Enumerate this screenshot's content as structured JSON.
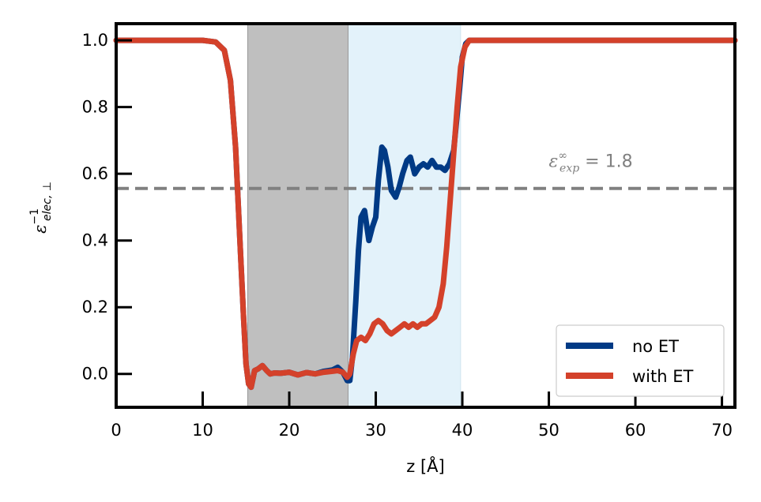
{
  "chart_data": {
    "type": "line",
    "xlabel": "z [Å]",
    "ylabel_main": "ε",
    "ylabel_sup": "−1",
    "ylabel_sub": "elec, ⊥",
    "xlim": [
      0,
      71.5
    ],
    "ylim": [
      -0.1,
      1.05
    ],
    "x_ticks": [
      0,
      10,
      20,
      30,
      40,
      50,
      60,
      70
    ],
    "x_tick_labels": [
      "0",
      "10",
      "20",
      "30",
      "40",
      "50",
      "60",
      "70"
    ],
    "y_ticks": [
      0.0,
      0.2,
      0.4,
      0.6,
      0.8,
      1.0
    ],
    "y_tick_labels": [
      "0.0",
      "0.2",
      "0.4",
      "0.6",
      "0.8",
      "1.0"
    ],
    "grid": false,
    "legend_position": "lower-right",
    "shaded_regions": [
      {
        "from": 15.2,
        "to": 26.8,
        "color": "#bfbfbf"
      },
      {
        "from": 26.8,
        "to": 39.8,
        "color": "#e3f2fa"
      }
    ],
    "reference_line": {
      "y": 0.556,
      "color": "#808080",
      "style": "dashed"
    },
    "annotation": {
      "base": "ε",
      "sup": "∞",
      "sub": "exp",
      "rest": " = 1.8",
      "x": 50,
      "y": 0.63
    },
    "series": [
      {
        "name": "no ET",
        "color": "#003a85",
        "x": [
          0,
          10,
          11.5,
          12.5,
          13.2,
          13.8,
          14.3,
          14.7,
          15.0,
          15.3,
          15.6,
          16.0,
          16.4,
          16.9,
          17.4,
          17.8,
          18.3,
          19.0,
          20.0,
          21.0,
          22.0,
          23.0,
          24.0,
          25.0,
          25.6,
          26.2,
          26.7,
          27.0,
          27.3,
          27.7,
          28.0,
          28.3,
          28.7,
          29.2,
          29.6,
          30.0,
          30.3,
          30.7,
          31.0,
          31.4,
          31.8,
          32.3,
          32.7,
          33.1,
          33.6,
          34.0,
          34.5,
          35.0,
          35.5,
          36.0,
          36.5,
          37.0,
          37.5,
          38.0,
          38.5,
          39.0,
          39.3,
          39.7,
          40.0,
          40.4,
          40.8,
          41.3,
          42.0,
          43.0,
          50.0,
          71.5
        ],
        "values": [
          1.0,
          1.0,
          0.995,
          0.97,
          0.88,
          0.68,
          0.4,
          0.18,
          0.03,
          -0.03,
          -0.04,
          0.01,
          0.015,
          0.025,
          0.01,
          0.0,
          0.003,
          0.002,
          0.005,
          -0.003,
          0.004,
          0.0,
          0.008,
          0.012,
          0.02,
          0.005,
          -0.02,
          -0.02,
          0.05,
          0.22,
          0.37,
          0.47,
          0.49,
          0.4,
          0.44,
          0.47,
          0.58,
          0.68,
          0.67,
          0.62,
          0.55,
          0.53,
          0.56,
          0.6,
          0.64,
          0.65,
          0.6,
          0.62,
          0.63,
          0.62,
          0.64,
          0.62,
          0.62,
          0.61,
          0.63,
          0.67,
          0.75,
          0.86,
          0.95,
          0.99,
          1.0,
          1.0,
          1.0,
          1.0,
          1.0,
          1.0
        ]
      },
      {
        "name": "with ET",
        "color": "#d4412a",
        "x": [
          0,
          10,
          11.5,
          12.5,
          13.2,
          13.8,
          14.3,
          14.7,
          15.0,
          15.3,
          15.6,
          16.0,
          16.4,
          16.9,
          17.4,
          17.8,
          18.3,
          19.0,
          20.0,
          21.0,
          22.0,
          23.0,
          24.0,
          25.0,
          25.6,
          26.2,
          26.7,
          27.0,
          27.4,
          27.8,
          28.3,
          28.8,
          29.3,
          29.8,
          30.3,
          30.8,
          31.3,
          31.8,
          32.3,
          32.8,
          33.3,
          33.8,
          34.3,
          34.8,
          35.3,
          35.8,
          36.3,
          36.8,
          37.3,
          37.8,
          38.2,
          38.6,
          39.0,
          39.4,
          39.8,
          40.3,
          40.8,
          41.3,
          42.0,
          43.0,
          50.0,
          71.5
        ],
        "values": [
          1.0,
          1.0,
          0.995,
          0.97,
          0.88,
          0.68,
          0.4,
          0.18,
          0.03,
          -0.03,
          -0.04,
          0.01,
          0.015,
          0.025,
          0.01,
          0.0,
          0.003,
          0.002,
          0.005,
          -0.003,
          0.004,
          0.0,
          0.005,
          0.008,
          0.01,
          0.005,
          -0.01,
          0.0,
          0.06,
          0.1,
          0.11,
          0.1,
          0.12,
          0.15,
          0.16,
          0.15,
          0.13,
          0.12,
          0.13,
          0.14,
          0.15,
          0.14,
          0.15,
          0.14,
          0.15,
          0.15,
          0.16,
          0.17,
          0.2,
          0.27,
          0.38,
          0.52,
          0.66,
          0.8,
          0.92,
          0.98,
          1.0,
          1.0,
          1.0,
          1.0,
          1.0,
          1.0
        ]
      }
    ]
  }
}
